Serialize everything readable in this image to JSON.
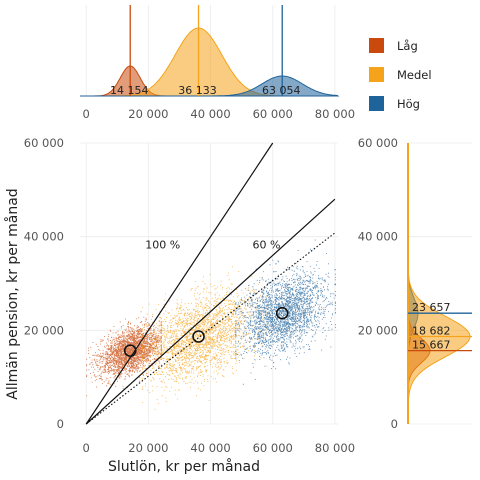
{
  "chart_data": {
    "type": "scatter",
    "xlabel": "Slutlön, kr per månad",
    "ylabel": "Allmän pension, kr per månad",
    "xlim": [
      -2000,
      81000
    ],
    "ylim": [
      0,
      60000
    ],
    "x_ticks": [
      "0",
      "20 000",
      "40 000",
      "60 000",
      "80 000"
    ],
    "y_ticks": [
      "0",
      "20 000",
      "40 000",
      "60 000"
    ],
    "x_tick_values": [
      0,
      20000,
      40000,
      60000,
      80000
    ],
    "y_tick_values": [
      0,
      20000,
      40000,
      60000
    ],
    "grid": true,
    "legend_position": "top-right",
    "reference_lines": [
      {
        "label": "100 %",
        "slope": 1.0,
        "style": "solid"
      },
      {
        "label": "60 %",
        "slope": 0.6,
        "style": "solid"
      },
      {
        "slope": 0.51,
        "style": "dotted"
      }
    ],
    "series": [
      {
        "name": "Låg",
        "color": "#c94a0c",
        "x_mean": 14154,
        "x_sd": 5000,
        "x_range": [
          0,
          24000
        ],
        "y_mean": 15667,
        "y_sd": 2300,
        "x_median_label": "14 154",
        "y_median_label": "15 667",
        "median_point": [
          14154,
          15667
        ]
      },
      {
        "name": "Medel",
        "color": "#f5a31a",
        "x_mean": 36133,
        "x_sd": 8500,
        "x_range": [
          18000,
          58000
        ],
        "y_mean": 18682,
        "y_sd": 4200,
        "x_median_label": "36 133",
        "y_median_label": "18 682",
        "median_point": [
          36133,
          18682
        ]
      },
      {
        "name": "Hög",
        "color": "#1f639b",
        "x_mean": 63054,
        "x_sd": 7000,
        "x_range": [
          48000,
          80000
        ],
        "y_mean": 23657,
        "y_sd": 3800,
        "x_median_label": "63 054",
        "y_median_label": "23 657",
        "median_point": [
          63054,
          23657
        ]
      }
    ]
  }
}
